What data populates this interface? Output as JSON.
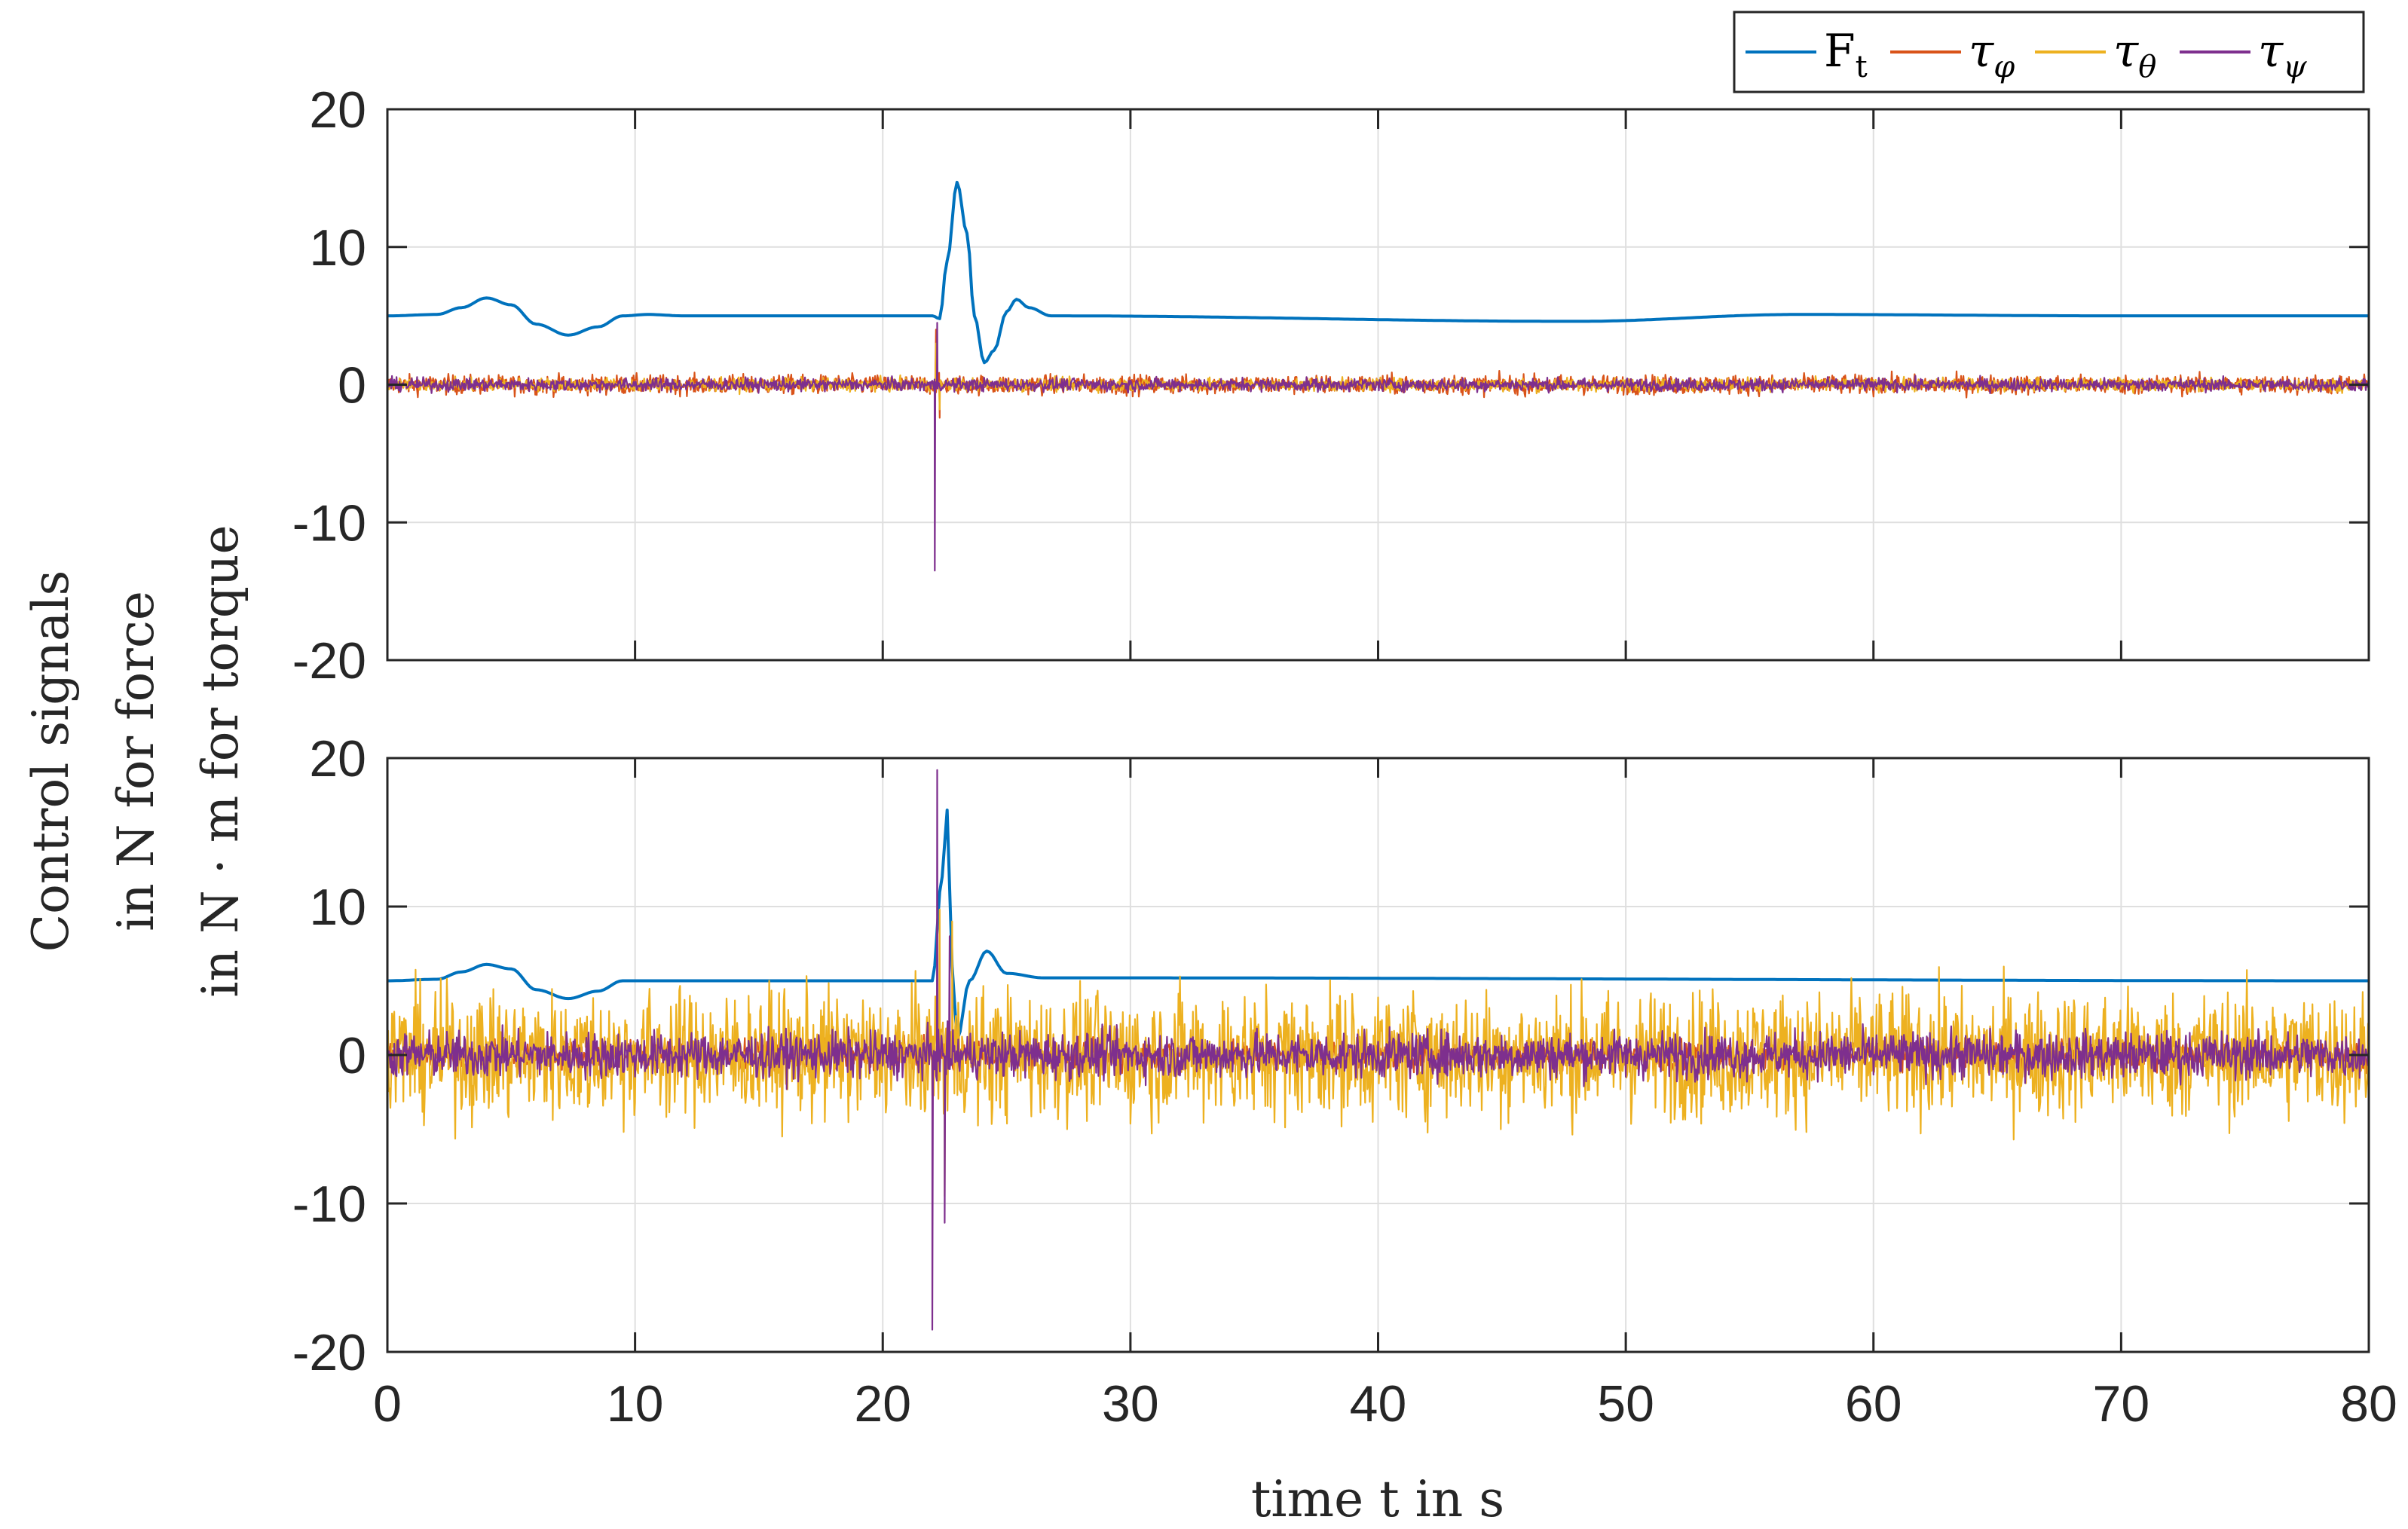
{
  "chart_data": [
    {
      "type": "line",
      "panel": "top",
      "ylim": [
        -20,
        20
      ],
      "xlim": [
        0,
        80
      ],
      "yticks": [
        "20",
        "10",
        "0",
        "-10",
        "-20"
      ],
      "grid": true,
      "series": [
        {
          "name": "F_t",
          "color": "#0072BD",
          "kind": "smooth",
          "points": [
            [
              0,
              5
            ],
            [
              2,
              5.1
            ],
            [
              3,
              5.6
            ],
            [
              4,
              6.3
            ],
            [
              5,
              5.8
            ],
            [
              6,
              4.4
            ],
            [
              7.3,
              3.6
            ],
            [
              8.5,
              4.2
            ],
            [
              9.5,
              5.0
            ],
            [
              10.5,
              5.1
            ],
            [
              12,
              5
            ],
            [
              22,
              5
            ],
            [
              22.3,
              4.8
            ],
            [
              22.6,
              9
            ],
            [
              23.0,
              14.7
            ],
            [
              23.4,
              11
            ],
            [
              23.7,
              5
            ],
            [
              24.1,
              1.6
            ],
            [
              24.5,
              2.5
            ],
            [
              25.0,
              5.3
            ],
            [
              25.4,
              6.2
            ],
            [
              25.9,
              5.6
            ],
            [
              26.8,
              5
            ],
            [
              48,
              4.6
            ],
            [
              57,
              5.1
            ],
            [
              70,
              5
            ],
            [
              80,
              5
            ]
          ]
        },
        {
          "name": "tau_phi",
          "color": "#D95319",
          "kind": "noise",
          "amp": 0.9,
          "spike": 4
        },
        {
          "name": "tau_theta",
          "color": "#EDB120",
          "kind": "noise",
          "amp": 0.6,
          "spike": 3
        },
        {
          "name": "tau_psi",
          "color": "#7E2F8E",
          "kind": "noise",
          "amp": 0.6,
          "spikes": [
            [
              22.1,
              -13.5
            ],
            [
              22.2,
              4.5
            ]
          ]
        }
      ]
    },
    {
      "type": "line",
      "panel": "bottom",
      "ylim": [
        -20,
        20
      ],
      "xlim": [
        0,
        80
      ],
      "yticks": [
        "20",
        "10",
        "0",
        "-10",
        "-20"
      ],
      "xticks": [
        "0",
        "10",
        "20",
        "30",
        "40",
        "50",
        "60",
        "70",
        "80"
      ],
      "grid": true,
      "series": [
        {
          "name": "F_t",
          "color": "#0072BD",
          "kind": "smooth",
          "points": [
            [
              0,
              5
            ],
            [
              2,
              5.1
            ],
            [
              3,
              5.6
            ],
            [
              4,
              6.1
            ],
            [
              5,
              5.8
            ],
            [
              6,
              4.4
            ],
            [
              7.3,
              3.8
            ],
            [
              8.5,
              4.3
            ],
            [
              9.5,
              5.0
            ],
            [
              12,
              5
            ],
            [
              22,
              5
            ],
            [
              22.4,
              12
            ],
            [
              22.6,
              16.5
            ],
            [
              22.8,
              6
            ],
            [
              23,
              1
            ],
            [
              23.5,
              5
            ],
            [
              24.2,
              7
            ],
            [
              25,
              5.5
            ],
            [
              26.5,
              5.2
            ],
            [
              80,
              5
            ]
          ]
        },
        {
          "name": "tau_phi",
          "color": "#D95319",
          "kind": "noise",
          "amp": 1.2
        },
        {
          "name": "tau_theta",
          "color": "#EDB120",
          "kind": "noise",
          "amp": 5.5,
          "spikes": [
            [
              22.3,
              9.8
            ],
            [
              22.5,
              -9.5
            ],
            [
              22.8,
              9
            ]
          ]
        },
        {
          "name": "tau_psi",
          "color": "#7E2F8E",
          "kind": "noise",
          "amp": 2.0,
          "spikes": [
            [
              22.0,
              -18.5
            ],
            [
              22.2,
              19.2
            ],
            [
              22.5,
              -11.3
            ],
            [
              22.7,
              8
            ]
          ]
        }
      ]
    }
  ],
  "legend": {
    "position": "top-right",
    "entries": [
      {
        "symbol": "F",
        "sub": "t",
        "color": "#0072BD"
      },
      {
        "symbol": "τ",
        "sub": "φ",
        "color": "#D95319"
      },
      {
        "symbol": "τ",
        "sub": "θ",
        "color": "#EDB120"
      },
      {
        "symbol": "τ",
        "sub": "ψ",
        "color": "#7E2F8E"
      }
    ]
  },
  "ylabel_lines": [
    "Control signals",
    "in N for force",
    "in N · m for torque"
  ],
  "xlabel": "time t in s",
  "colors": {
    "axis": "#262626",
    "grid": "#dfdfdf"
  }
}
